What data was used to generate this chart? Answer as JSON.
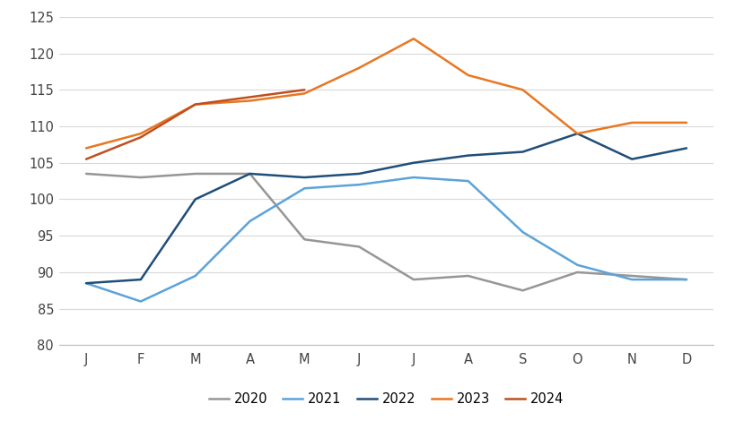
{
  "months": [
    "J",
    "F",
    "M",
    "A",
    "M",
    "J",
    "J",
    "A",
    "S",
    "O",
    "N",
    "D"
  ],
  "series": {
    "2020": [
      103.5,
      103.0,
      103.5,
      103.5,
      94.5,
      93.5,
      89.0,
      89.5,
      87.5,
      90.0,
      89.5,
      89.0
    ],
    "2021": [
      88.5,
      86.0,
      89.5,
      97.0,
      101.5,
      102.0,
      103.0,
      102.5,
      95.5,
      91.0,
      89.0,
      89.0
    ],
    "2022": [
      88.5,
      89.0,
      100.0,
      103.5,
      103.0,
      103.5,
      105.0,
      106.0,
      106.5,
      109.0,
      105.5,
      107.0
    ],
    "2023": [
      107.0,
      109.0,
      113.0,
      113.5,
      114.5,
      118.0,
      122.0,
      117.0,
      115.0,
      109.0,
      110.5,
      110.5
    ],
    "2024": [
      105.5,
      108.5,
      113.0,
      114.0,
      115.0,
      null,
      null,
      null,
      null,
      null,
      null,
      null
    ]
  },
  "colors": {
    "2020": "#969696",
    "2021": "#5BA3D9",
    "2022": "#1F4E79",
    "2023": "#E87722",
    "2024": "#BF4F1F"
  },
  "ylim": [
    80,
    125
  ],
  "yticks": [
    80,
    85,
    90,
    95,
    100,
    105,
    110,
    115,
    120,
    125
  ],
  "background_color": "#ffffff",
  "grid_color": "#d9d9d9",
  "linewidth": 1.8,
  "legend_labels": [
    "2020",
    "2021",
    "2022",
    "2023",
    "2024"
  ],
  "fig_width": 8.2,
  "fig_height": 4.7,
  "dpi": 100
}
